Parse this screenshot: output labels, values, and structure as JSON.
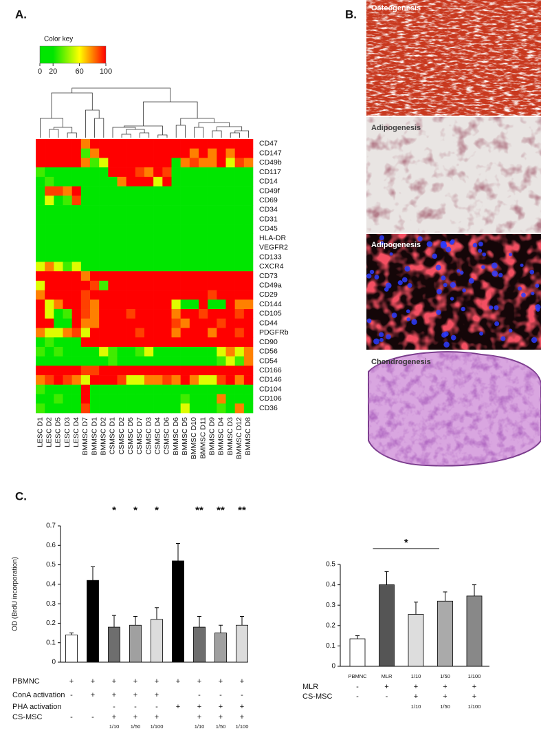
{
  "panel_labels": [
    "A.",
    "B.",
    "C."
  ],
  "images": [
    {
      "label": "Osteogenesis"
    },
    {
      "label": "Adipogenesis"
    },
    {
      "label": "Adipogenesis"
    },
    {
      "label": "Chondrogenesis"
    }
  ],
  "chart_data": [
    {
      "type": "heatmap",
      "key_title": "Color key",
      "key_lim": [
        0,
        100
      ],
      "key_ticks": [
        0,
        20,
        60,
        100
      ],
      "key_colors": [
        "#00e600",
        "#00e600",
        "#ffff00",
        "#ff0000"
      ],
      "columns": [
        "LESC D1",
        "LESC D2",
        "LESC D5",
        "LESC D3",
        "LESC D4",
        "BMMSC D7",
        "BMMSC D1",
        "BMMSC D2",
        "CSMSC D1",
        "CSMSC D2",
        "CSMSC D5",
        "CSMSC D7",
        "CSMSC D3",
        "CSMSC D4",
        "CSMSC D6",
        "BMMSC D6",
        "BMMSC D5",
        "BMMSC D10",
        "BMMSC D11",
        "BMMSC D9",
        "BMMSC D4",
        "BMMSC D3",
        "BMMSC D12",
        "BMMSC D8"
      ],
      "rows": [
        "CD47",
        "CD147",
        "CD49b",
        "CD117",
        "CD14",
        "CD49f",
        "CD69",
        "CD34",
        "CD31",
        "CD45",
        "HLA-DR",
        "VEGFR2",
        "CD133",
        "CXCR4",
        "CD73",
        "CD49a",
        "CD29",
        "CD144",
        "CD105",
        "CD44",
        "PDGFRb",
        "CD90",
        "CD56",
        "CD54",
        "CD166",
        "CD146",
        "CD104",
        "CD106",
        "CD36"
      ],
      "values": [
        [
          100,
          100,
          100,
          100,
          100,
          80,
          100,
          100,
          100,
          100,
          100,
          100,
          100,
          100,
          100,
          100,
          100,
          100,
          100,
          100,
          100,
          100,
          100,
          100
        ],
        [
          100,
          100,
          100,
          100,
          100,
          30,
          80,
          100,
          100,
          100,
          100,
          100,
          100,
          100,
          100,
          100,
          100,
          80,
          100,
          80,
          100,
          80,
          100,
          100
        ],
        [
          100,
          100,
          100,
          100,
          100,
          80,
          30,
          55,
          100,
          100,
          100,
          100,
          100,
          100,
          100,
          5,
          80,
          90,
          80,
          80,
          100,
          55,
          90,
          80
        ],
        [
          30,
          5,
          5,
          5,
          5,
          5,
          5,
          5,
          100,
          100,
          100,
          90,
          80,
          100,
          90,
          5,
          5,
          5,
          5,
          5,
          5,
          5,
          5,
          5
        ],
        [
          5,
          30,
          5,
          5,
          5,
          5,
          5,
          5,
          5,
          80,
          100,
          100,
          100,
          55,
          100,
          5,
          5,
          5,
          5,
          5,
          5,
          5,
          5,
          5
        ],
        [
          5,
          90,
          90,
          80,
          100,
          5,
          5,
          5,
          5,
          5,
          5,
          5,
          5,
          5,
          5,
          5,
          5,
          5,
          5,
          5,
          5,
          5,
          5,
          5
        ],
        [
          5,
          55,
          5,
          30,
          90,
          5,
          5,
          5,
          5,
          5,
          5,
          5,
          5,
          5,
          5,
          5,
          5,
          5,
          5,
          5,
          5,
          5,
          5,
          5
        ],
        [
          5,
          5,
          5,
          5,
          5,
          5,
          5,
          5,
          5,
          5,
          5,
          5,
          5,
          5,
          5,
          5,
          5,
          5,
          5,
          5,
          5,
          5,
          5,
          5
        ],
        [
          5,
          5,
          5,
          5,
          5,
          5,
          5,
          5,
          5,
          5,
          5,
          5,
          5,
          5,
          5,
          5,
          5,
          5,
          5,
          5,
          5,
          5,
          5,
          5
        ],
        [
          5,
          5,
          5,
          5,
          5,
          5,
          5,
          5,
          5,
          5,
          5,
          5,
          5,
          5,
          5,
          5,
          5,
          5,
          5,
          5,
          5,
          5,
          5,
          5
        ],
        [
          5,
          5,
          5,
          5,
          5,
          5,
          5,
          5,
          5,
          5,
          5,
          5,
          5,
          5,
          5,
          5,
          5,
          5,
          5,
          5,
          5,
          5,
          5,
          5
        ],
        [
          5,
          5,
          5,
          5,
          5,
          5,
          5,
          5,
          5,
          5,
          5,
          5,
          5,
          5,
          5,
          5,
          5,
          5,
          5,
          5,
          5,
          5,
          5,
          5
        ],
        [
          5,
          5,
          5,
          5,
          5,
          5,
          5,
          5,
          5,
          5,
          5,
          5,
          5,
          5,
          5,
          5,
          5,
          5,
          5,
          5,
          5,
          5,
          5,
          5
        ],
        [
          55,
          80,
          55,
          30,
          55,
          5,
          5,
          5,
          5,
          5,
          5,
          5,
          5,
          5,
          5,
          5,
          5,
          5,
          5,
          5,
          5,
          5,
          5,
          5
        ],
        [
          100,
          100,
          100,
          100,
          100,
          80,
          100,
          100,
          100,
          100,
          100,
          100,
          100,
          100,
          100,
          100,
          100,
          100,
          100,
          100,
          100,
          100,
          100,
          100
        ],
        [
          55,
          100,
          100,
          100,
          100,
          100,
          90,
          30,
          100,
          100,
          100,
          100,
          100,
          100,
          100,
          100,
          100,
          100,
          100,
          100,
          100,
          100,
          100,
          100
        ],
        [
          80,
          100,
          100,
          100,
          100,
          90,
          100,
          100,
          100,
          100,
          100,
          100,
          100,
          100,
          100,
          100,
          100,
          100,
          100,
          90,
          100,
          100,
          100,
          100
        ],
        [
          100,
          55,
          80,
          100,
          100,
          90,
          80,
          100,
          100,
          100,
          100,
          100,
          100,
          100,
          100,
          55,
          5,
          5,
          100,
          5,
          5,
          100,
          80,
          80
        ],
        [
          100,
          55,
          5,
          30,
          100,
          90,
          80,
          100,
          100,
          100,
          90,
          100,
          100,
          100,
          100,
          80,
          100,
          100,
          90,
          100,
          100,
          100,
          90,
          100
        ],
        [
          100,
          100,
          5,
          5,
          100,
          80,
          80,
          100,
          100,
          100,
          100,
          100,
          100,
          100,
          100,
          90,
          80,
          100,
          100,
          100,
          90,
          100,
          100,
          100
        ],
        [
          80,
          55,
          55,
          80,
          90,
          55,
          100,
          100,
          100,
          100,
          100,
          90,
          100,
          100,
          100,
          80,
          100,
          100,
          100,
          80,
          100,
          100,
          90,
          100
        ],
        [
          5,
          30,
          5,
          5,
          5,
          100,
          100,
          100,
          100,
          100,
          100,
          100,
          100,
          100,
          100,
          100,
          100,
          100,
          100,
          100,
          100,
          100,
          100,
          100
        ],
        [
          30,
          5,
          30,
          5,
          5,
          5,
          5,
          55,
          30,
          5,
          5,
          30,
          55,
          5,
          5,
          5,
          5,
          5,
          5,
          5,
          55,
          80,
          55,
          80
        ],
        [
          5,
          5,
          5,
          5,
          5,
          5,
          5,
          5,
          30,
          5,
          5,
          5,
          5,
          5,
          5,
          5,
          5,
          5,
          5,
          5,
          30,
          55,
          30,
          80
        ],
        [
          100,
          100,
          100,
          100,
          100,
          90,
          90,
          100,
          100,
          100,
          100,
          100,
          100,
          100,
          100,
          100,
          100,
          100,
          100,
          100,
          100,
          100,
          100,
          100
        ],
        [
          80,
          90,
          100,
          90,
          80,
          55,
          100,
          100,
          100,
          90,
          55,
          55,
          80,
          80,
          90,
          80,
          100,
          80,
          55,
          55,
          90,
          100,
          80,
          100
        ],
        [
          30,
          5,
          5,
          5,
          5,
          100,
          5,
          5,
          5,
          5,
          5,
          5,
          5,
          5,
          5,
          5,
          5,
          5,
          5,
          5,
          5,
          5,
          5,
          5
        ],
        [
          5,
          5,
          30,
          5,
          5,
          100,
          5,
          5,
          5,
          5,
          5,
          5,
          5,
          5,
          5,
          5,
          30,
          5,
          5,
          5,
          80,
          5,
          5,
          5
        ],
        [
          30,
          5,
          5,
          5,
          5,
          90,
          5,
          5,
          5,
          5,
          5,
          5,
          5,
          5,
          5,
          5,
          55,
          5,
          5,
          5,
          30,
          5,
          80,
          5
        ]
      ]
    },
    {
      "type": "bar",
      "ylabel": "OD (BrdU incorporation)",
      "ylim": [
        0,
        0.7
      ],
      "yticks": [
        0,
        0.1,
        0.2,
        0.3,
        0.4,
        0.5,
        0.6,
        0.7
      ],
      "values": [
        0.14,
        0.42,
        0.18,
        0.19,
        0.22,
        0.52,
        0.18,
        0.15,
        0.19
      ],
      "errors": [
        0.01,
        0.07,
        0.06,
        0.045,
        0.06,
        0.09,
        0.055,
        0.04,
        0.045
      ],
      "colors": [
        "#ffffff",
        "#000000",
        "#6e6e6e",
        "#a0a0a0",
        "#dcdcdc",
        "#000000",
        "#6e6e6e",
        "#a0a0a0",
        "#dcdcdc"
      ],
      "significance": [
        null,
        null,
        "*",
        "*",
        "*",
        null,
        "**",
        "**",
        "**"
      ],
      "conditions": [
        {
          "name": "PBMNC",
          "marks": [
            "+",
            "+",
            "+",
            "+",
            "+",
            "+",
            "+",
            "+",
            "+"
          ]
        },
        {
          "name": "ConA activation",
          "marks": [
            "-",
            "+",
            "+",
            "+",
            "+",
            null,
            "-",
            "-",
            "-"
          ]
        },
        {
          "name": "PHA activation",
          "marks": [
            null,
            null,
            "-",
            "-",
            "-",
            "+",
            "+",
            "+",
            "+"
          ]
        },
        {
          "name": "CS-MSC",
          "marks": [
            "-",
            "-",
            "+",
            "+",
            "+",
            null,
            "+",
            "+",
            "+"
          ]
        }
      ],
      "dilutions": [
        null,
        null,
        "1/10",
        "1/50",
        "1/100",
        null,
        "1/10",
        "1/50",
        "1/100"
      ]
    },
    {
      "type": "bar",
      "ylim": [
        0,
        0.5
      ],
      "yticks": [
        0,
        0.1,
        0.2,
        0.3,
        0.4,
        0.5
      ],
      "categories": [
        "PBMNC",
        "MLR",
        "1/10",
        "1/50",
        "1/100"
      ],
      "values": [
        0.135,
        0.4,
        0.255,
        0.32,
        0.345
      ],
      "errors": [
        0.015,
        0.065,
        0.06,
        0.045,
        0.055
      ],
      "colors": [
        "#ffffff",
        "#555555",
        "#dddddd",
        "#aaaaaa",
        "#888888"
      ],
      "bracket_label": "*",
      "conditions": [
        {
          "name": "MLR",
          "marks": [
            "-",
            "+",
            "+",
            "+",
            "+"
          ]
        },
        {
          "name": "CS-MSC",
          "marks": [
            "-",
            "-",
            "+",
            "+",
            "+"
          ]
        }
      ],
      "dilutions": [
        null,
        null,
        "1/10",
        "1/50",
        "1/100"
      ]
    }
  ]
}
